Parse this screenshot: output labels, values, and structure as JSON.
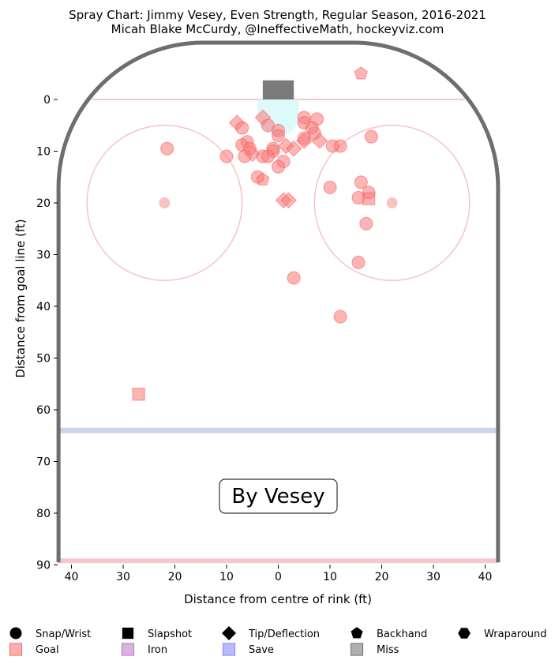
{
  "chart_data": {
    "type": "scatter",
    "title": "Spray Chart: Jimmy Vesey, Even Strength, Regular Season, 2016-2021",
    "subtitle": "Micah Blake McCurdy, @IneffectiveMath, hockeyviz.com",
    "xlabel": "Distance from centre of rink (ft)",
    "ylabel": "Distance from goal line (ft)",
    "xlim": [
      -42.5,
      42.5
    ],
    "ylim": [
      -11,
      90
    ],
    "x_ticks": [
      -40,
      -30,
      -20,
      -10,
      0,
      10,
      20,
      30,
      40
    ],
    "x_tick_labels": [
      "40",
      "30",
      "20",
      "10",
      "0",
      "10",
      "20",
      "30",
      "40"
    ],
    "y_ticks": [
      0,
      10,
      20,
      30,
      40,
      50,
      60,
      70,
      80,
      90
    ],
    "y_tick_labels": [
      "0",
      "10",
      "20",
      "30",
      "40",
      "50",
      "60",
      "70",
      "80",
      "90"
    ],
    "grid": false,
    "annotation": "By Vesey",
    "colors": {
      "goal": "#f87878",
      "goal_edge": "#ff5a5a",
      "boards": "#6e6e6e",
      "goal_line": "#f5c6cb",
      "blue_line": "#c9d5ea",
      "faceoff_circle": "#f7c3c3",
      "net": "#7a7a7a",
      "crease": "#d9fafa"
    },
    "legend": {
      "placement": "bottom",
      "shot_types": [
        {
          "label": "Snap/Wrist",
          "shape": "circle-icon"
        },
        {
          "label": "Slapshot",
          "shape": "square-icon"
        },
        {
          "label": "Tip/Deflection",
          "shape": "diamond-icon"
        },
        {
          "label": "Backhand",
          "shape": "pentagon-icon"
        },
        {
          "label": "Wraparound",
          "shape": "hexagon-icon"
        }
      ],
      "outcomes": [
        {
          "label": "Goal",
          "color": "#f87878"
        },
        {
          "label": "Iron",
          "color": "#c080c0"
        },
        {
          "label": "Save",
          "color": "#8c8cff"
        },
        {
          "label": "Miss",
          "color": "#7a7a7a"
        }
      ]
    },
    "points": [
      {
        "x": 16,
        "y": -5,
        "shape": "pentagon"
      },
      {
        "x": -3,
        "y": 3.5,
        "shape": "diamond"
      },
      {
        "x": -8,
        "y": 4.5,
        "shape": "diamond"
      },
      {
        "x": -2,
        "y": 5,
        "shape": "circle"
      },
      {
        "x": 5,
        "y": 3.5,
        "shape": "circle"
      },
      {
        "x": 7.5,
        "y": 3.8,
        "shape": "circle"
      },
      {
        "x": 5,
        "y": 4.5,
        "shape": "circle"
      },
      {
        "x": -7,
        "y": 5.5,
        "shape": "circle"
      },
      {
        "x": 0,
        "y": 6,
        "shape": "circle"
      },
      {
        "x": 6.5,
        "y": 5.5,
        "shape": "circle"
      },
      {
        "x": 7,
        "y": 6.5,
        "shape": "circle"
      },
      {
        "x": 0,
        "y": 7,
        "shape": "circle"
      },
      {
        "x": 5,
        "y": 7.5,
        "shape": "circle"
      },
      {
        "x": 8,
        "y": 8,
        "shape": "diamond"
      },
      {
        "x": 5,
        "y": 8,
        "shape": "diamond"
      },
      {
        "x": 18,
        "y": 7.2,
        "shape": "circle"
      },
      {
        "x": -6,
        "y": 8.2,
        "shape": "circle"
      },
      {
        "x": -7,
        "y": 8.8,
        "shape": "circle"
      },
      {
        "x": 1.5,
        "y": 9,
        "shape": "diamond"
      },
      {
        "x": -5.5,
        "y": 9.5,
        "shape": "circle"
      },
      {
        "x": -1,
        "y": 9.5,
        "shape": "circle"
      },
      {
        "x": 3,
        "y": 9.5,
        "shape": "diamond"
      },
      {
        "x": 12,
        "y": 9,
        "shape": "circle"
      },
      {
        "x": 10.5,
        "y": 9,
        "shape": "circle"
      },
      {
        "x": -21.5,
        "y": 9.5,
        "shape": "circle"
      },
      {
        "x": -1,
        "y": 10,
        "shape": "circle"
      },
      {
        "x": -5,
        "y": 10.5,
        "shape": "diamond"
      },
      {
        "x": -3,
        "y": 11,
        "shape": "circle"
      },
      {
        "x": -6.5,
        "y": 11,
        "shape": "circle"
      },
      {
        "x": -10,
        "y": 11,
        "shape": "circle"
      },
      {
        "x": -2,
        "y": 11,
        "shape": "circle"
      },
      {
        "x": 1,
        "y": 12,
        "shape": "circle"
      },
      {
        "x": 0,
        "y": 13,
        "shape": "circle"
      },
      {
        "x": -4,
        "y": 15,
        "shape": "circle"
      },
      {
        "x": -3,
        "y": 15.5,
        "shape": "pentagon"
      },
      {
        "x": 16,
        "y": 16,
        "shape": "circle"
      },
      {
        "x": 10,
        "y": 17,
        "shape": "circle"
      },
      {
        "x": 17.5,
        "y": 18,
        "shape": "circle"
      },
      {
        "x": 15.5,
        "y": 19,
        "shape": "circle"
      },
      {
        "x": 17.5,
        "y": 19.2,
        "shape": "square"
      },
      {
        "x": 1,
        "y": 19.5,
        "shape": "diamond"
      },
      {
        "x": 2,
        "y": 19.5,
        "shape": "diamond"
      },
      {
        "x": 17,
        "y": 24,
        "shape": "circle"
      },
      {
        "x": 15.5,
        "y": 31.5,
        "shape": "circle"
      },
      {
        "x": 3,
        "y": 34.5,
        "shape": "circle"
      },
      {
        "x": 12,
        "y": 42,
        "shape": "circle"
      },
      {
        "x": -27,
        "y": 57,
        "shape": "square"
      }
    ]
  }
}
